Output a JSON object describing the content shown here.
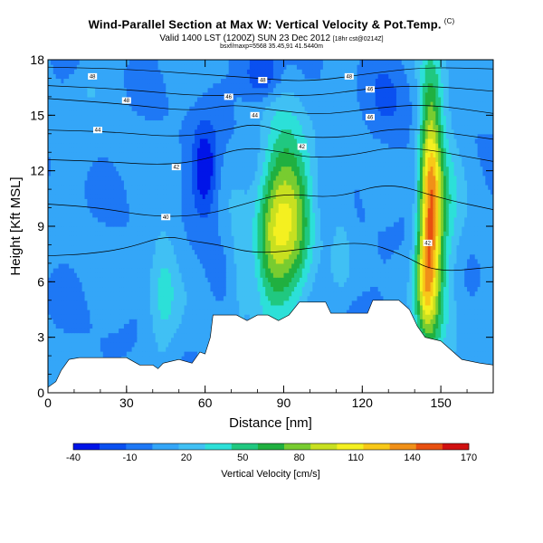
{
  "header": {
    "title": "Wind-Parallel Section at Max W: Vertical Velocity & Pot.Temp.",
    "title_mark": "(C)",
    "subtitle_main": "Valid 1400 LST (1200Z) SUN 23 Dec 2012",
    "subtitle_small": "[18hr cst@0214Z]",
    "line3": "bsxf/maxp=5568 35.45,91 41.5440m"
  },
  "chart_data": {
    "type": "heatmap",
    "title": "Wind-Parallel Section at Max W: Vertical Velocity & Pot.Temp.",
    "xlabel": "Distance [nm]",
    "ylabel": "Height [Kft MSL]",
    "xlim": [
      0,
      170
    ],
    "ylim": [
      0,
      18
    ],
    "xticks": [
      0,
      30,
      60,
      90,
      120,
      150
    ],
    "yticks": [
      0,
      3,
      6,
      9,
      12,
      15,
      18
    ],
    "colorbar": {
      "label": "Vertical Velocity [cm/s]",
      "ticks": [
        -40,
        -10,
        20,
        50,
        80,
        110,
        140,
        170
      ],
      "min": -40,
      "max": 170,
      "step": 15,
      "colors": [
        "#0014e8",
        "#0a50f0",
        "#1e78f5",
        "#34a6f8",
        "#40c0f4",
        "#2ce0d8",
        "#20c880",
        "#20b040",
        "#78cc30",
        "#c8e020",
        "#f4f020",
        "#f8c818",
        "#f09018",
        "#e85010",
        "#d01010"
      ]
    },
    "velocity_features": [
      {
        "x": 90,
        "y": 9.5,
        "sx": 6,
        "sy": 3.6,
        "w": 95
      },
      {
        "x": 84,
        "y": 8.0,
        "sx": 4,
        "sy": 2.5,
        "w": 25
      },
      {
        "x": 97,
        "y": 9.0,
        "sx": 4,
        "sy": 3.0,
        "w": 20
      },
      {
        "x": 146,
        "y": 10.0,
        "sx": 3,
        "sy": 4.8,
        "w": 130
      },
      {
        "x": 143,
        "y": 6.0,
        "sx": 2.5,
        "sy": 2.0,
        "w": 50
      },
      {
        "x": 151,
        "y": 9.0,
        "sx": 4.5,
        "sy": 5.0,
        "w": 35
      },
      {
        "x": 44,
        "y": 5.5,
        "sx": 4,
        "sy": 2.8,
        "w": 30
      },
      {
        "x": 73,
        "y": 7.0,
        "sx": 3,
        "sy": 2.5,
        "w": 20
      },
      {
        "x": 112,
        "y": 9.5,
        "sx": 3,
        "sy": 3.0,
        "w": 15
      },
      {
        "x": 60,
        "y": 12,
        "sx": 3.5,
        "sy": 1.8,
        "w": -50
      },
      {
        "x": 82,
        "y": 17.2,
        "sx": 5,
        "sy": 1.0,
        "w": -45
      },
      {
        "x": 117,
        "y": 4.0,
        "sx": 5,
        "sy": 1.5,
        "w": -10
      },
      {
        "x": 15,
        "y": 16.5,
        "sx": 5,
        "sy": 1.0,
        "w": 12
      },
      {
        "x": 130,
        "y": 15.5,
        "sx": 6,
        "sy": 2.0,
        "w": -15
      }
    ],
    "terrain_profile": [
      [
        0,
        0.3
      ],
      [
        3,
        0.6
      ],
      [
        5,
        1.2
      ],
      [
        8,
        1.8
      ],
      [
        12,
        1.9
      ],
      [
        30,
        1.9
      ],
      [
        35,
        1.5
      ],
      [
        40,
        1.5
      ],
      [
        42,
        1.3
      ],
      [
        44,
        1.6
      ],
      [
        50,
        1.8
      ],
      [
        55,
        1.6
      ],
      [
        58,
        2.2
      ],
      [
        60,
        2.1
      ],
      [
        62,
        3.0
      ],
      [
        63,
        4.2
      ],
      [
        72,
        4.2
      ],
      [
        76,
        3.9
      ],
      [
        80,
        4.2
      ],
      [
        84,
        4.2
      ],
      [
        88,
        3.9
      ],
      [
        92,
        4.2
      ],
      [
        96,
        4.9
      ],
      [
        106,
        4.9
      ],
      [
        108,
        4.3
      ],
      [
        122,
        4.3
      ],
      [
        124,
        5.0
      ],
      [
        134,
        5.0
      ],
      [
        138,
        4.5
      ],
      [
        141,
        3.6
      ],
      [
        144,
        3.0
      ],
      [
        150,
        2.8
      ],
      [
        158,
        1.8
      ],
      [
        165,
        1.6
      ],
      [
        170,
        1.5
      ]
    ],
    "theta_contours": [
      {
        "label": "48",
        "points": [
          [
            0,
            17.6
          ],
          [
            30,
            17.5
          ],
          [
            60,
            17.2
          ],
          [
            80,
            17.0
          ],
          [
            100,
            16.8
          ],
          [
            125,
            17.3
          ],
          [
            145,
            17.6
          ],
          [
            170,
            17.5
          ]
        ]
      },
      {
        "label": "46",
        "points": [
          [
            0,
            16.6
          ],
          [
            30,
            16.4
          ],
          [
            60,
            16.0
          ],
          [
            80,
            16.2
          ],
          [
            100,
            16.0
          ],
          [
            125,
            16.5
          ],
          [
            145,
            16.6
          ],
          [
            170,
            16.3
          ]
        ]
      },
      {
        "label": "46",
        "points": [
          [
            0,
            15.9
          ],
          [
            30,
            15.6
          ],
          [
            55,
            15.2
          ],
          [
            70,
            15.6
          ],
          [
            85,
            15.3
          ],
          [
            105,
            15.0
          ],
          [
            125,
            15.4
          ],
          [
            145,
            15.6
          ],
          [
            170,
            15.1
          ]
        ]
      },
      {
        "label": "44",
        "points": [
          [
            0,
            14.2
          ],
          [
            25,
            14.1
          ],
          [
            50,
            13.8
          ],
          [
            68,
            14.2
          ],
          [
            80,
            14.6
          ],
          [
            95,
            13.8
          ],
          [
            115,
            13.8
          ],
          [
            135,
            14.4
          ],
          [
            170,
            13.7
          ]
        ]
      },
      {
        "label": "42",
        "points": [
          [
            0,
            12.6
          ],
          [
            20,
            12.5
          ],
          [
            45,
            12.3
          ],
          [
            60,
            12.6
          ],
          [
            75,
            13.3
          ],
          [
            90,
            13.0
          ],
          [
            100,
            12.7
          ],
          [
            115,
            12.8
          ],
          [
            135,
            13.4
          ],
          [
            170,
            12.5
          ]
        ]
      },
      {
        "label": "40",
        "points": [
          [
            0,
            10.2
          ],
          [
            20,
            10.0
          ],
          [
            40,
            9.5
          ],
          [
            60,
            9.6
          ],
          [
            75,
            10.2
          ],
          [
            90,
            10.8
          ],
          [
            110,
            10.5
          ],
          [
            130,
            11.4
          ],
          [
            150,
            10.5
          ],
          [
            170,
            9.9
          ]
        ]
      },
      {
        "label": "38",
        "points": [
          [
            0,
            7.4
          ],
          [
            15,
            7.5
          ],
          [
            30,
            7.8
          ],
          [
            45,
            8.5
          ],
          [
            55,
            8.2
          ],
          [
            65,
            8.0
          ],
          [
            80,
            7.5
          ],
          [
            100,
            7.8
          ],
          [
            120,
            8.2
          ],
          [
            135,
            7.5
          ],
          [
            148,
            6.5
          ],
          [
            170,
            6.8
          ]
        ]
      }
    ],
    "contour_labels": [
      {
        "text": "48",
        "x": 17,
        "y": 17.1
      },
      {
        "text": "48",
        "x": 30,
        "y": 15.8
      },
      {
        "text": "46",
        "x": 69,
        "y": 16.0
      },
      {
        "text": "44",
        "x": 19,
        "y": 14.2
      },
      {
        "text": "44",
        "x": 79,
        "y": 15.0
      },
      {
        "text": "42",
        "x": 49,
        "y": 12.2
      },
      {
        "text": "40",
        "x": 45,
        "y": 9.5
      },
      {
        "text": "42",
        "x": 97,
        "y": 13.3
      },
      {
        "text": "48",
        "x": 82,
        "y": 16.9
      },
      {
        "text": "48",
        "x": 115,
        "y": 17.1
      },
      {
        "text": "46",
        "x": 123,
        "y": 16.4
      },
      {
        "text": "46",
        "x": 123,
        "y": 14.9
      },
      {
        "text": "42",
        "x": 145,
        "y": 8.1
      }
    ]
  }
}
